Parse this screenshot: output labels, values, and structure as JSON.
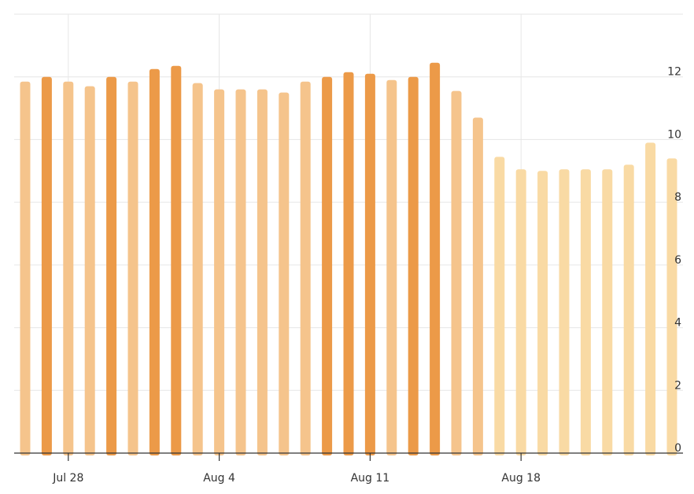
{
  "chart_data": {
    "type": "bar",
    "title": "",
    "xlabel": "",
    "ylabel": "",
    "x_start": "2025-07-26",
    "x_tick_labels": [
      {
        "date": "2025-07-28",
        "label": "Jul 28"
      },
      {
        "date": "2025-08-04",
        "label": "Aug 4"
      },
      {
        "date": "2025-08-11",
        "label": "Aug 11"
      },
      {
        "date": "2025-08-18",
        "label": "Aug 18"
      }
    ],
    "y_ticks": [
      0,
      2,
      4,
      6,
      8,
      10,
      12
    ],
    "ylim": [
      0,
      14
    ],
    "y_axis_position": "right",
    "grid": true,
    "bars": [
      {
        "date": "2025-07-26",
        "value": 11.85,
        "color": "#f5c48c"
      },
      {
        "date": "2025-07-27",
        "value": 12.0,
        "color": "#ec9a48"
      },
      {
        "date": "2025-07-28",
        "value": 11.85,
        "color": "#f5c48c"
      },
      {
        "date": "2025-07-29",
        "value": 11.7,
        "color": "#f5c48c"
      },
      {
        "date": "2025-07-30",
        "value": 12.0,
        "color": "#ec9a48"
      },
      {
        "date": "2025-07-31",
        "value": 11.85,
        "color": "#f5c48c"
      },
      {
        "date": "2025-08-01",
        "value": 12.25,
        "color": "#ec9a48"
      },
      {
        "date": "2025-08-02",
        "value": 12.35,
        "color": "#ec9a48"
      },
      {
        "date": "2025-08-03",
        "value": 11.8,
        "color": "#f5c48c"
      },
      {
        "date": "2025-08-04",
        "value": 11.6,
        "color": "#f5c48c"
      },
      {
        "date": "2025-08-05",
        "value": 11.6,
        "color": "#f5c48c"
      },
      {
        "date": "2025-08-06",
        "value": 11.6,
        "color": "#f5c48c"
      },
      {
        "date": "2025-08-07",
        "value": 11.5,
        "color": "#f5c48c"
      },
      {
        "date": "2025-08-08",
        "value": 11.85,
        "color": "#f5c48c"
      },
      {
        "date": "2025-08-09",
        "value": 12.0,
        "color": "#ec9a48"
      },
      {
        "date": "2025-08-10",
        "value": 12.15,
        "color": "#ec9a48"
      },
      {
        "date": "2025-08-11",
        "value": 12.1,
        "color": "#ec9a48"
      },
      {
        "date": "2025-08-12",
        "value": 11.9,
        "color": "#f5c48c"
      },
      {
        "date": "2025-08-13",
        "value": 12.0,
        "color": "#ec9a48"
      },
      {
        "date": "2025-08-14",
        "value": 12.45,
        "color": "#ec9a48"
      },
      {
        "date": "2025-08-15",
        "value": 11.55,
        "color": "#f5c48c"
      },
      {
        "date": "2025-08-16",
        "value": 10.7,
        "color": "#f5c48c"
      },
      {
        "date": "2025-08-17",
        "value": 9.45,
        "color": "#f9daa4"
      },
      {
        "date": "2025-08-18",
        "value": 9.05,
        "color": "#f9daa4"
      },
      {
        "date": "2025-08-19",
        "value": 9.0,
        "color": "#f9daa4"
      },
      {
        "date": "2025-08-20",
        "value": 9.05,
        "color": "#f9daa4"
      },
      {
        "date": "2025-08-21",
        "value": 9.05,
        "color": "#f9daa4"
      },
      {
        "date": "2025-08-22",
        "value": 9.05,
        "color": "#f9daa4"
      },
      {
        "date": "2025-08-23",
        "value": 9.2,
        "color": "#f9daa4"
      },
      {
        "date": "2025-08-24",
        "value": 9.9,
        "color": "#f9daa4"
      },
      {
        "date": "2025-08-25",
        "value": 9.4,
        "color": "#f9daa4"
      }
    ]
  }
}
